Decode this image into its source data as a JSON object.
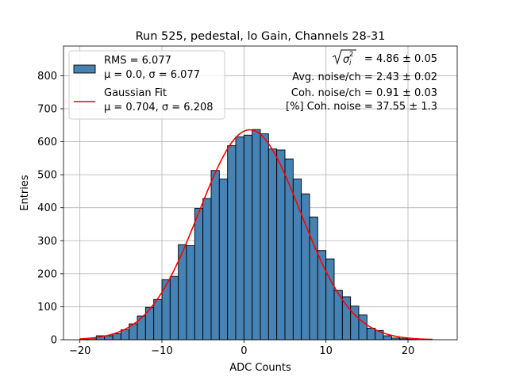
{
  "chart_data": {
    "type": "bar",
    "title": "Run 525, pedestal, lo Gain, Channels 28-31",
    "xlabel": "ADC Counts",
    "ylabel": "Entries",
    "xlim": [
      -22,
      26
    ],
    "ylim": [
      0,
      890
    ],
    "xticks": [
      -20,
      -10,
      0,
      10,
      20
    ],
    "yticks": [
      0,
      100,
      200,
      300,
      400,
      500,
      600,
      700,
      800
    ],
    "grid": true,
    "legend_position": "top-left",
    "colors": {
      "bar_fill": "#4682b4",
      "bar_edge": "#000000",
      "fit_line": "#ff0000",
      "grid": "#b0b0b0"
    },
    "histogram": {
      "name_line1": "RMS = 6.077",
      "name_line2": "μ = 0.0, σ = 6.077",
      "bin_width": 1,
      "bins": [
        {
          "x0": -20,
          "count": 2
        },
        {
          "x0": -19,
          "count": 5
        },
        {
          "x0": -18,
          "count": 12
        },
        {
          "x0": -17,
          "count": 12
        },
        {
          "x0": -16,
          "count": 18
        },
        {
          "x0": -15,
          "count": 30
        },
        {
          "x0": -14,
          "count": 48
        },
        {
          "x0": -13,
          "count": 72
        },
        {
          "x0": -12,
          "count": 98
        },
        {
          "x0": -11,
          "count": 122
        },
        {
          "x0": -10,
          "count": 182
        },
        {
          "x0": -9,
          "count": 192
        },
        {
          "x0": -8,
          "count": 288
        },
        {
          "x0": -7,
          "count": 285
        },
        {
          "x0": -6,
          "count": 398
        },
        {
          "x0": -5,
          "count": 428
        },
        {
          "x0": -4,
          "count": 513
        },
        {
          "x0": -3,
          "count": 487
        },
        {
          "x0": -2,
          "count": 588
        },
        {
          "x0": -1,
          "count": 615
        },
        {
          "x0": 0,
          "count": 620
        },
        {
          "x0": 1,
          "count": 637
        },
        {
          "x0": 2,
          "count": 624
        },
        {
          "x0": 3,
          "count": 578
        },
        {
          "x0": 4,
          "count": 575
        },
        {
          "x0": 5,
          "count": 548
        },
        {
          "x0": 6,
          "count": 487
        },
        {
          "x0": 7,
          "count": 442
        },
        {
          "x0": 8,
          "count": 372
        },
        {
          "x0": 9,
          "count": 270
        },
        {
          "x0": 10,
          "count": 245
        },
        {
          "x0": 11,
          "count": 150
        },
        {
          "x0": 12,
          "count": 130
        },
        {
          "x0": 13,
          "count": 102
        },
        {
          "x0": 14,
          "count": 75
        },
        {
          "x0": 15,
          "count": 35
        },
        {
          "x0": 16,
          "count": 28
        },
        {
          "x0": 17,
          "count": 12
        },
        {
          "x0": 18,
          "count": 5
        },
        {
          "x0": 19,
          "count": 3
        },
        {
          "x0": 20,
          "count": 1
        }
      ]
    },
    "fit": {
      "name_line1": "Gaussian Fit",
      "name_line2": "μ = 0.704, σ = 6.208",
      "mu": 0.704,
      "sigma": 6.208,
      "amplitude": 636,
      "x_range": [
        -20,
        23
      ]
    },
    "annotations": {
      "sigma_label": "= 4.86 ± 0.05",
      "avg_noise": "Avg. noise/ch = 2.43 ± 0.02",
      "coh_noise": "Coh. noise/ch = 0.91 ± 0.03",
      "pct_coh_noise": "[%] Coh. noise = 37.55 ± 1.3"
    }
  }
}
